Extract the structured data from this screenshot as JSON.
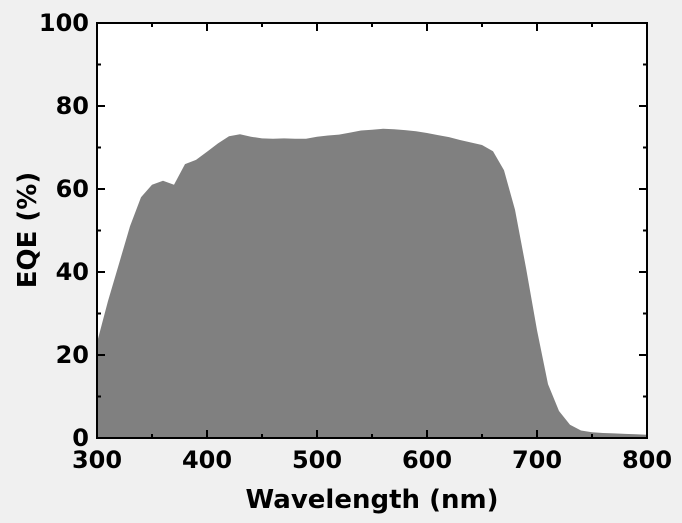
{
  "chart_data": {
    "type": "area",
    "title": "",
    "xlabel": "Wavelength (nm)",
    "ylabel": "EQE (%)",
    "xlim": [
      300,
      800
    ],
    "ylim": [
      0,
      100
    ],
    "xticks": [
      300,
      400,
      500,
      600,
      700,
      800
    ],
    "yticks": [
      0,
      20,
      40,
      60,
      80,
      100
    ],
    "xtick_labels": [
      "300",
      "400",
      "500",
      "600",
      "700",
      "800"
    ],
    "ytick_labels": [
      "0",
      "20",
      "40",
      "60",
      "80",
      "100"
    ],
    "grid": false,
    "fill_color": "#808080",
    "series": [
      {
        "x": [
          300,
          305,
          310,
          320,
          330,
          340,
          350,
          360,
          370,
          380,
          390,
          400,
          410,
          420,
          430,
          440,
          450,
          460,
          470,
          480,
          490,
          500,
          510,
          520,
          530,
          540,
          550,
          560,
          570,
          580,
          590,
          600,
          610,
          620,
          630,
          640,
          650,
          660,
          670,
          680,
          690,
          700,
          710,
          720,
          730,
          740,
          750,
          760,
          770,
          780,
          790,
          800
        ],
        "y": [
          23,
          28,
          33,
          42,
          51,
          58,
          61,
          62,
          61,
          66,
          67,
          69,
          71,
          72.7,
          73.2,
          72.6,
          72.2,
          72.1,
          72.2,
          72.1,
          72.1,
          72.6,
          72.9,
          73.1,
          73.6,
          74.1,
          74.3,
          74.5,
          74.4,
          74.2,
          73.9,
          73.5,
          73,
          72.5,
          71.8,
          71.2,
          70.6,
          69.1,
          64.5,
          55,
          41,
          26,
          13,
          6.5,
          3.2,
          1.8,
          1.4,
          1.2,
          1.1,
          1,
          0.9,
          0.8
        ]
      }
    ]
  }
}
